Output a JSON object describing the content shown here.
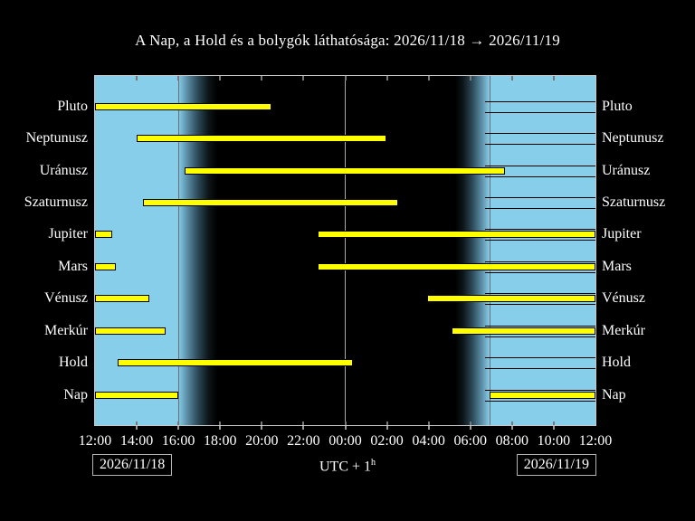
{
  "title": "A Nap, a Hold és a bolygók láthatósága: 2026/11/18 → 2026/11/19",
  "footer": {
    "date_left": "2026/11/18",
    "date_right": "2026/11/19",
    "timezone_label": "UTC + 1",
    "timezone_sup": "h"
  },
  "chart_data": {
    "type": "bar",
    "subtype": "horizontal-visibility-timeline",
    "title": "A Nap, a Hold és a bolygók láthatósága: 2026/11/18 → 2026/11/19",
    "x_axis": {
      "start_label": "12:00",
      "end_label": "12:00",
      "hours_span": 24,
      "tick_interval_hours": 2,
      "tick_labels": [
        "12:00",
        "14:00",
        "16:00",
        "18:00",
        "20:00",
        "22:00",
        "00:00",
        "02:00",
        "04:00",
        "06:00",
        "08:00",
        "10:00",
        "12:00"
      ]
    },
    "y_axis": {
      "labels_both_sides": true,
      "categories": [
        "Pluto",
        "Neptunusz",
        "Uránusz",
        "Szaturnusz",
        "Jupiter",
        "Mars",
        "Vénusz",
        "Merkúr",
        "Hold",
        "Nap"
      ]
    },
    "series": [
      {
        "name": "Pluto",
        "segments": [
          [
            0,
            8.47
          ]
        ]
      },
      {
        "name": "Neptunusz",
        "segments": [
          [
            2.0,
            13.97
          ]
        ]
      },
      {
        "name": "Uránusz",
        "segments": [
          [
            4.3,
            19.66
          ]
        ]
      },
      {
        "name": "Szaturnusz",
        "segments": [
          [
            2.3,
            14.54
          ]
        ]
      },
      {
        "name": "Jupiter",
        "segments": [
          [
            0,
            0.82
          ],
          [
            10.68,
            24
          ]
        ]
      },
      {
        "name": "Mars",
        "segments": [
          [
            0,
            1.0
          ],
          [
            10.68,
            24
          ]
        ]
      },
      {
        "name": "Vénusz",
        "segments": [
          [
            0,
            2.6
          ],
          [
            15.93,
            24
          ]
        ]
      },
      {
        "name": "Merkúr",
        "segments": [
          [
            0,
            3.39
          ],
          [
            17.1,
            24
          ]
        ]
      },
      {
        "name": "Hold",
        "segments": [
          [
            1.08,
            12.37
          ]
        ]
      },
      {
        "name": "Nap",
        "segments": [
          [
            0,
            3.99
          ],
          [
            18.92,
            24
          ]
        ]
      }
    ],
    "background_bands": [
      {
        "kind": "day",
        "from": 0,
        "to": 3.99
      },
      {
        "kind": "twilight-evening",
        "from": 3.99,
        "to": 5.86
      },
      {
        "kind": "night",
        "from": 5.86,
        "to": 17.27
      },
      {
        "kind": "twilight-morning",
        "from": 17.27,
        "to": 18.92
      },
      {
        "kind": "day",
        "from": 18.92,
        "to": 24
      }
    ],
    "event_lines": [
      {
        "name": "sunset",
        "hour": 3.99,
        "color": "#6e6e6e"
      },
      {
        "name": "midnight",
        "hour": 11.98,
        "color": "#aaaaaa"
      },
      {
        "name": "sunrise",
        "hour": 18.92,
        "color": "#6e6e6e"
      }
    ],
    "colors": {
      "day": "#87CEEB",
      "night": "#000000",
      "bar": "#FFFF00",
      "bar_edge": "#000000",
      "text": "#FFFFFF",
      "plot_border": "#C9C9C9",
      "tick": "#777777"
    }
  }
}
